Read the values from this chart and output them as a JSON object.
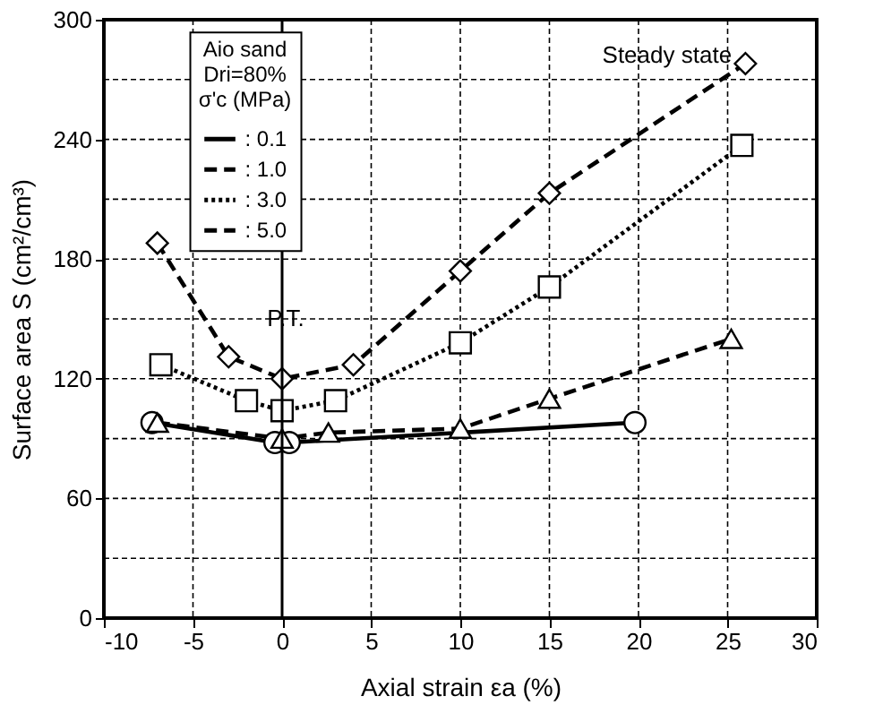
{
  "chart_data": {
    "type": "line",
    "xlabel": "Axial strain εa (%)",
    "ylabel": "Surface area S (cm²/cm³)",
    "legend_title": [
      "Aio sand",
      "Dri=80%",
      "σ'c (MPa)"
    ],
    "xlim": [
      -10,
      30
    ],
    "xticks": [
      -10,
      -5,
      0,
      5,
      10,
      15,
      20,
      25,
      30
    ],
    "ylim": [
      0,
      300
    ],
    "yticks": [
      0,
      {
        "value": 30,
        "label": null
      },
      60,
      {
        "value": 90,
        "label": null
      },
      120,
      {
        "value": 150,
        "label": null
      },
      180,
      {
        "value": 210,
        "label": null
      },
      240,
      {
        "value": 270,
        "label": null
      },
      300
    ],
    "grid": true,
    "legend": "top left",
    "ref_lines": [
      {
        "axis": "x",
        "value": 0,
        "color": "#000000",
        "line_style": "solid"
      }
    ],
    "annotations": [
      "Steady state",
      "P.T."
    ],
    "series": [
      {
        "name": ": 0.1",
        "color": "#000000",
        "marker": "circle",
        "line_style": "solid",
        "x": [
          -7.3,
          -0.4,
          0.4,
          19.8
        ],
        "values": [
          98,
          88,
          88,
          98
        ]
      },
      {
        "name": ": 1.0",
        "color": "#000000",
        "marker": "triangle",
        "line_style": "dashed",
        "x": [
          -7,
          0,
          2.6,
          10,
          15,
          25.2
        ],
        "values": [
          98,
          90,
          93,
          95,
          110,
          140
        ]
      },
      {
        "name": ": 3.0",
        "color": "#000000",
        "marker": "square",
        "line_style": "dotted",
        "x": [
          -6.8,
          -2,
          0,
          3,
          10,
          15,
          25.8
        ],
        "values": [
          127,
          109,
          104,
          109,
          138,
          166,
          237
        ]
      },
      {
        "name": ": 5.0",
        "color": "#000000",
        "marker": "diamond",
        "line_style": "dashed",
        "x": [
          -7,
          -3,
          0,
          4,
          10,
          15,
          26
        ],
        "values": [
          188,
          131,
          120,
          127,
          174,
          213,
          278
        ]
      }
    ]
  }
}
